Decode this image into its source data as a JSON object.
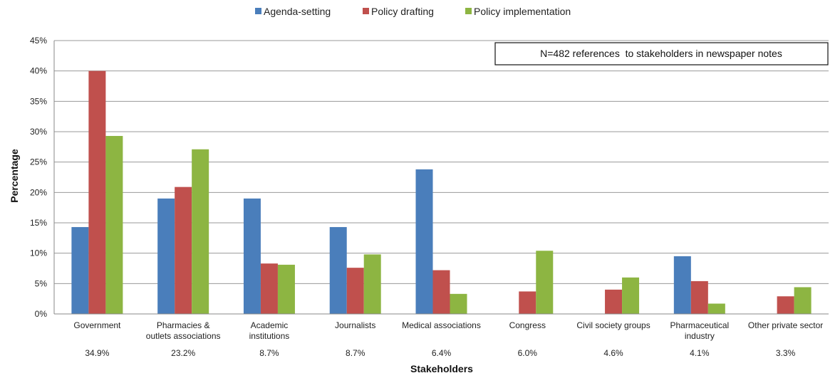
{
  "chart_data": {
    "type": "bar",
    "xlabel": "Stakeholders",
    "ylabel": "Percentage",
    "ylim": [
      0,
      45
    ],
    "yticks": [
      "0%",
      "5%",
      "10%",
      "15%",
      "20%",
      "25%",
      "30%",
      "35%",
      "40%",
      "45%"
    ],
    "grid": true,
    "legend_position": "top",
    "annotation": "N=482 references  to stakeholders in newspaper notes",
    "categories": [
      [
        "Government"
      ],
      [
        "Pharmacies &",
        "outlets associations"
      ],
      [
        "Academic",
        "institutions"
      ],
      [
        "Journalists"
      ],
      [
        "Medical associations"
      ],
      [
        "Congress"
      ],
      [
        "Civil society groups"
      ],
      [
        "Pharmaceutical",
        "industry"
      ],
      [
        "Other private sector"
      ]
    ],
    "category_shares": [
      "34.9%",
      "23.2%",
      "8.7%",
      "8.7%",
      "6.4%",
      "6.0%",
      "4.6%",
      "4.1%",
      "3.3%"
    ],
    "series": [
      {
        "name": "Agenda-setting",
        "color": "#4a7ebb",
        "values": [
          14.3,
          19.0,
          19.0,
          14.3,
          23.8,
          0,
          0,
          9.5,
          0
        ]
      },
      {
        "name": "Policy drafting",
        "color": "#c0504d",
        "values": [
          40.0,
          20.9,
          8.3,
          7.6,
          7.2,
          3.7,
          4.0,
          5.4,
          2.9
        ]
      },
      {
        "name": "Policy implementation",
        "color": "#8db542",
        "values": [
          29.3,
          27.1,
          8.1,
          9.8,
          3.3,
          10.4,
          6.0,
          1.7,
          4.4
        ]
      }
    ]
  }
}
